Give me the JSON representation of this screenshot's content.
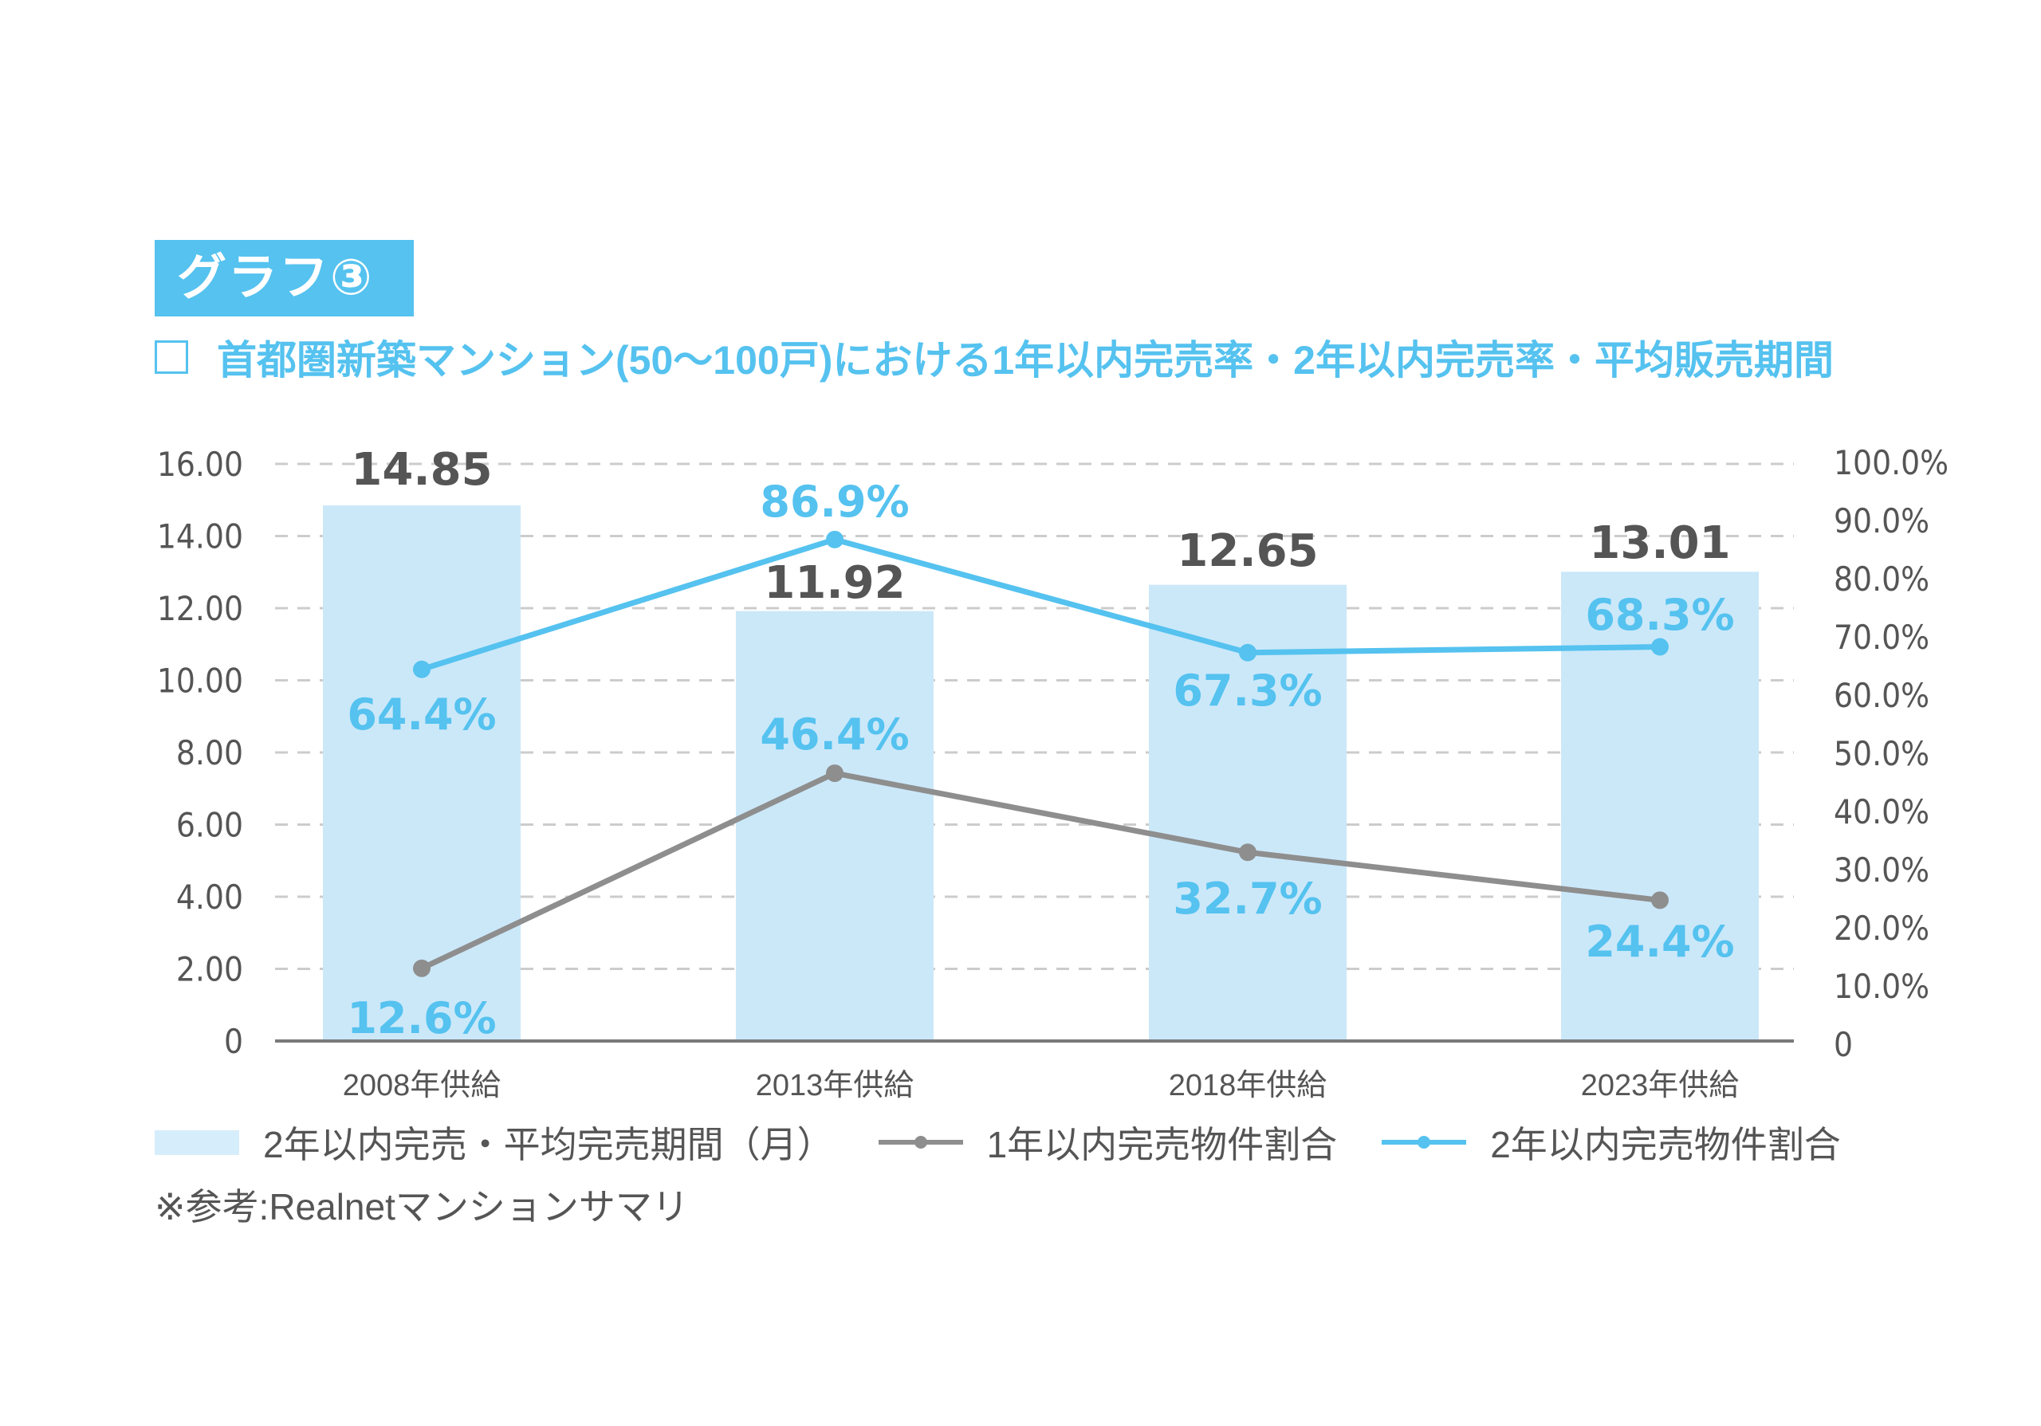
{
  "header": {
    "badge": "グラフ③",
    "subtitle": "首都圏新築マンション(50〜100戸)における1年以内完売率・2年以内完売率・平均販売期間"
  },
  "colors": {
    "accent": "#55c2ef",
    "bar": "#cbe8f9",
    "legend_bar": "#d6edfb",
    "gray_line": "#8e8e8e",
    "text": "#555555",
    "grid": "#cccccc"
  },
  "chart_data": {
    "type": "bar+line",
    "title": "首都圏新築マンション(50〜100戸)における1年以内完売率・2年以内完売率・平均販売期間",
    "categories": [
      "2008年供給",
      "2013年供給",
      "2018年供給",
      "2023年供給"
    ],
    "bars": {
      "name": "2年以内完売・平均完売期間(月)",
      "values": [
        14.85,
        11.92,
        12.65,
        13.01
      ],
      "labels": [
        "14.85",
        "11.92",
        "12.65",
        "13.01"
      ]
    },
    "series": [
      {
        "name": "1年以内完売物件割合",
        "values": [
          12.6,
          46.4,
          32.7,
          24.4
        ],
        "labels": [
          "12.6%",
          "46.4%",
          "32.7%",
          "24.4%"
        ],
        "color": "#8e8e8e"
      },
      {
        "name": "2年以内完売物件割合",
        "values": [
          64.4,
          86.9,
          67.3,
          68.3
        ],
        "labels": [
          "64.4%",
          "86.9%",
          "67.3%",
          "68.3%"
        ],
        "color": "#55c2ef"
      }
    ],
    "left_axis": {
      "ylim": [
        0,
        16
      ],
      "ticks": [
        "0",
        "2.00",
        "4.00",
        "6.00",
        "8.00",
        "10.00",
        "12.00",
        "14.00",
        "16.00"
      ]
    },
    "right_axis": {
      "ylim": [
        0,
        100
      ],
      "ticks": [
        "0",
        "10.0%",
        "20.0%",
        "30.0%",
        "40.0%",
        "50.0%",
        "60.0%",
        "70.0%",
        "80.0%",
        "90.0%",
        "100.0%"
      ]
    },
    "grid": true,
    "legend_position": "bottom"
  },
  "legend": {
    "items": [
      {
        "label": "2年以内完売・平均完売期間（月）"
      },
      {
        "label": "1年以内完売物件割合"
      },
      {
        "label": "2年以内完売物件割合"
      }
    ]
  },
  "footer": {
    "source": "※参考:Realnetマンションサマリ"
  }
}
